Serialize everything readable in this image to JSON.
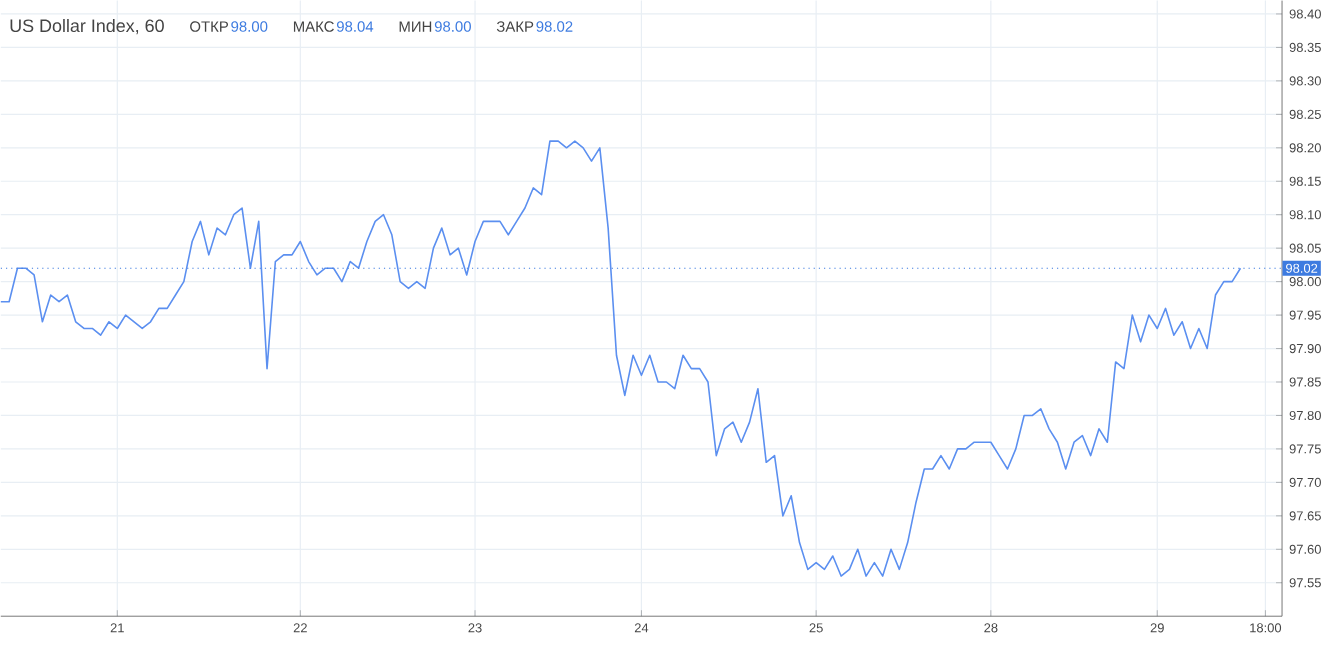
{
  "chart_data": {
    "type": "line",
    "title": "US Dollar Index, 60",
    "annotations": [
      "ОТКР",
      "98.00",
      "МАКС",
      "98.04",
      "МИН",
      "98.00",
      "ЗАКР",
      "98.02"
    ],
    "categories": [
      null,
      null,
      null,
      null,
      null,
      null,
      null,
      null,
      null,
      null,
      null,
      null,
      null,
      null,
      "21",
      null,
      null,
      null,
      null,
      null,
      null,
      null,
      null,
      null,
      null,
      null,
      null,
      null,
      null,
      null,
      null,
      null,
      null,
      null,
      null,
      null,
      "22",
      null,
      null,
      null,
      null,
      null,
      null,
      null,
      null,
      null,
      null,
      null,
      null,
      null,
      null,
      null,
      null,
      null,
      null,
      null,
      null,
      "23",
      null,
      null,
      null,
      null,
      null,
      null,
      null,
      null,
      null,
      null,
      null,
      null,
      null,
      null,
      null,
      null,
      null,
      null,
      null,
      "24",
      null,
      null,
      null,
      null,
      null,
      null,
      null,
      null,
      null,
      null,
      null,
      null,
      null,
      null,
      null,
      null,
      null,
      null,
      null,
      null,
      "25",
      null,
      null,
      null,
      null,
      null,
      null,
      null,
      null,
      null,
      null,
      null,
      null,
      null,
      null,
      null,
      null,
      null,
      null,
      null,
      null,
      "28",
      null,
      null,
      null,
      null,
      null,
      null,
      null,
      null,
      null,
      null,
      null,
      null,
      null,
      null,
      null,
      null,
      null,
      null,
      null,
      "29",
      null,
      null,
      null,
      null,
      null,
      null,
      null,
      null,
      null,
      null,
      null,
      null,
      "18:00",
      null,
      null
    ],
    "series": [
      {
        "color": "#5b8ff0",
        "values": [
          97.97,
          97.97,
          98.02,
          98.02,
          98.01,
          97.94,
          97.98,
          97.97,
          97.98,
          97.94,
          97.93,
          97.93,
          97.92,
          97.94,
          97.93,
          97.95,
          97.94,
          97.93,
          97.94,
          97.96,
          97.96,
          97.98,
          98.0,
          98.06,
          98.09,
          98.04,
          98.08,
          98.07,
          98.1,
          98.11,
          98.02,
          98.09,
          97.87,
          98.03,
          98.04,
          98.04,
          98.06,
          98.03,
          98.01,
          98.02,
          98.02,
          98.0,
          98.03,
          98.02,
          98.06,
          98.09,
          98.1,
          98.07,
          98.0,
          97.99,
          98.0,
          97.99,
          98.05,
          98.08,
          98.04,
          98.05,
          98.01,
          98.06,
          98.09,
          98.09,
          98.09,
          98.07,
          98.09,
          98.11,
          98.14,
          98.13,
          98.21,
          98.21,
          98.2,
          98.21,
          98.2,
          98.18,
          98.2,
          98.08,
          97.89,
          97.83,
          97.89,
          97.86,
          97.89,
          97.85,
          97.85,
          97.84,
          97.89,
          97.87,
          97.87,
          97.85,
          97.74,
          97.78,
          97.79,
          97.76,
          97.79,
          97.84,
          97.73,
          97.74,
          97.65,
          97.68,
          97.61,
          97.57,
          97.58,
          97.57,
          97.59,
          97.56,
          97.57,
          97.6,
          97.56,
          97.58,
          97.56,
          97.6,
          97.57,
          97.61,
          97.67,
          97.72,
          97.72,
          97.74,
          97.72,
          97.75,
          97.75,
          97.76,
          97.76,
          97.76,
          97.74,
          97.72,
          97.75,
          97.8,
          97.8,
          97.81,
          97.78,
          97.76,
          97.72,
          97.76,
          97.77,
          97.74,
          97.78,
          97.76,
          97.88,
          97.87,
          97.95,
          97.91,
          97.95,
          97.93,
          97.96,
          97.92,
          97.94,
          97.9,
          97.93,
          97.9,
          97.98,
          98.0,
          98.0,
          98.02,
          null,
          null,
          null,
          null,
          null
        ]
      }
    ],
    "ylim": [
      97.5,
      98.42
    ],
    "yticks": [
      {
        "value": 97.55,
        "label": "97.55"
      },
      {
        "value": 97.6,
        "label": "97.60"
      },
      {
        "value": 97.65,
        "label": "97.65"
      },
      {
        "value": 97.7,
        "label": "97.70"
      },
      {
        "value": 97.75,
        "label": "97.75"
      },
      {
        "value": 97.8,
        "label": "97.80"
      },
      {
        "value": 97.85,
        "label": "97.85"
      },
      {
        "value": 97.9,
        "label": "97.90"
      },
      {
        "value": 97.95,
        "label": "97.95"
      },
      {
        "value": 98.0,
        "label": "98.00"
      },
      {
        "value": 98.05,
        "label": "98.05"
      },
      {
        "value": 98.1,
        "label": "98.10"
      },
      {
        "value": 98.15,
        "label": "98.15"
      },
      {
        "value": 98.2,
        "label": "98.20"
      },
      {
        "value": 98.25,
        "label": "98.25"
      },
      {
        "value": 98.3,
        "label": "98.30"
      },
      {
        "value": 98.35,
        "label": "98.35"
      },
      {
        "value": 98.4,
        "label": "98.40"
      }
    ],
    "ref_lines": [
      {
        "axis": "y",
        "value": 98.02,
        "label": "98.02",
        "color": "#3d7be0",
        "line_style": "dotted"
      }
    ],
    "grid": true
  }
}
